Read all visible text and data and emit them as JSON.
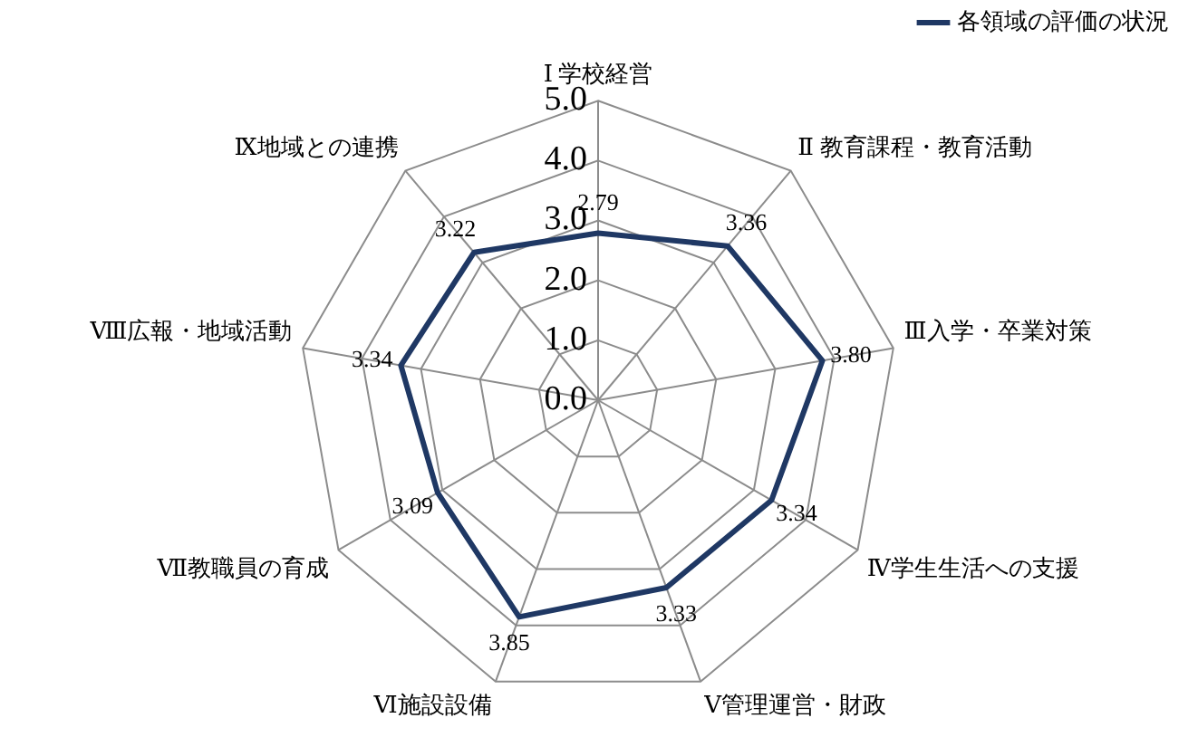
{
  "chart_data": {
    "type": "radar",
    "categories": [
      "Ⅰ 学校経営",
      "Ⅱ 教育課程・教育活動",
      "Ⅲ入学・卒業対策",
      "Ⅳ学生生活への支援",
      "Ⅴ管理運営・財政",
      "Ⅵ施設設備",
      "Ⅶ教職員の育成",
      "Ⅷ広報・地域活動",
      "Ⅸ地域との連携"
    ],
    "series": [
      {
        "name": "各領域の評価の状況",
        "color": "#1f3864",
        "values": [
          2.79,
          3.36,
          3.8,
          3.34,
          3.33,
          3.85,
          3.09,
          3.34,
          3.22
        ],
        "value_labels": [
          "2.79",
          "3.36",
          "3.80",
          "3.34",
          "3.33",
          "3.85",
          "3.09",
          "3.34",
          "3.22"
        ]
      }
    ],
    "ylim": [
      0,
      5
    ],
    "yticks": [
      {
        "value": 0,
        "label": "0.0"
      },
      {
        "value": 1,
        "label": "1.0"
      },
      {
        "value": 2,
        "label": "2.0"
      },
      {
        "value": 3,
        "label": "3.0"
      },
      {
        "value": 4,
        "label": "4.0"
      },
      {
        "value": 5,
        "label": "5.0"
      }
    ],
    "grid": true,
    "legend": "top right",
    "marker": "none"
  }
}
